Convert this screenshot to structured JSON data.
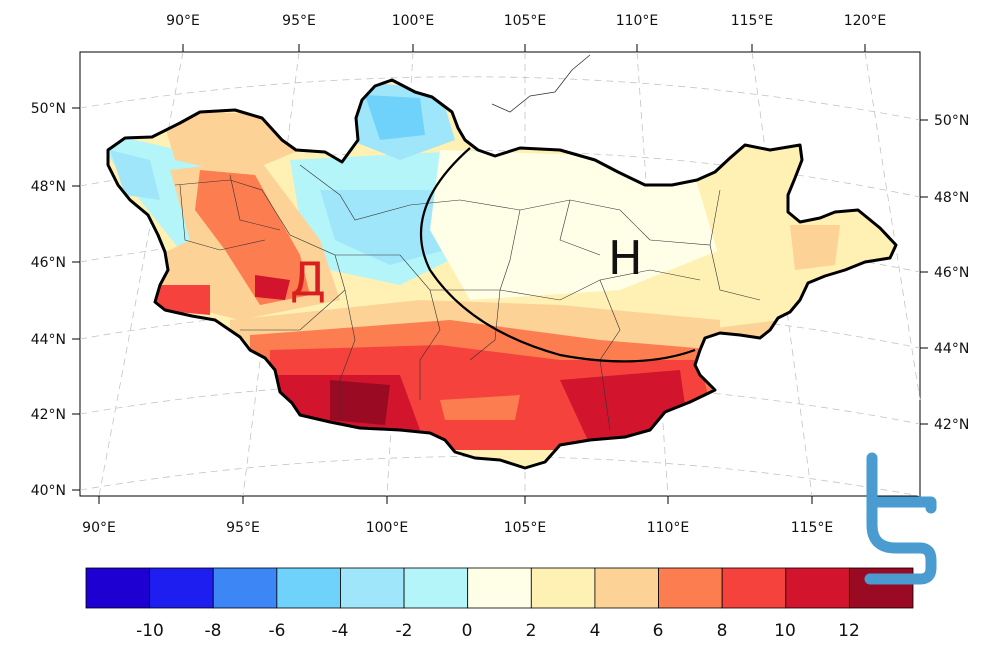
{
  "map": {
    "region": "Mongolia",
    "top_lon_labels": [
      "90°E",
      "95°E",
      "100°E",
      "105°E",
      "110°E",
      "115°E",
      "120°E"
    ],
    "bottom_lon_labels": [
      "90°E",
      "95°E",
      "100°E",
      "105°E",
      "110°E",
      "115°E"
    ],
    "left_lat_labels": [
      "50°N",
      "48°N",
      "46°N",
      "44°N",
      "42°N",
      "40°N"
    ],
    "right_lat_labels": [
      "50°N",
      "48°N",
      "46°N",
      "44°N",
      "42°N"
    ],
    "markers": {
      "high": "H",
      "low": "Д"
    }
  },
  "colorbar": {
    "colors": [
      "#1e00d2",
      "#1e1ef0",
      "#3c87f5",
      "#6ed2fa",
      "#a0e6fa",
      "#b4f5fa",
      "#fffee6",
      "#fff0b4",
      "#fdd296",
      "#fc7d50",
      "#f5423c",
      "#d2142d",
      "#9a0a23"
    ],
    "labels": [
      "-10",
      "-8",
      "-6",
      "-4",
      "-2",
      "0",
      "2",
      "4",
      "6",
      "8",
      "10",
      "12"
    ]
  },
  "colors": {
    "border": "#000000",
    "grid": "#bbbbbb",
    "logo": "#4a9bd0"
  }
}
